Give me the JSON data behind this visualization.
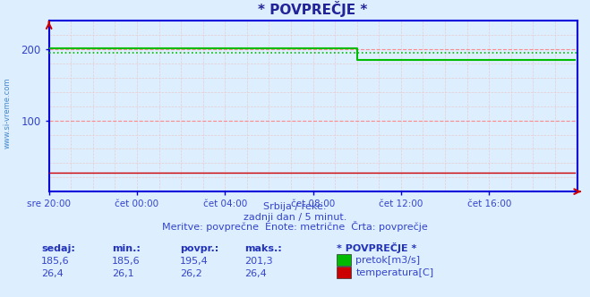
{
  "title": "* POVPREČJE *",
  "bg_color": "#ddeeff",
  "plot_bg_color": "#ddeeff",
  "grid_major_color": "#ff8888",
  "grid_minor_color": "#e8cccc",
  "axis_color": "#0000dd",
  "xlim": [
    0,
    288
  ],
  "ylim": [
    0,
    240
  ],
  "yticks": [
    100,
    200
  ],
  "xtick_labels": [
    "sre 20:00",
    "čet 00:00",
    "čet 04:00",
    "čet 08:00",
    "čet 12:00",
    "čet 16:00"
  ],
  "xtick_positions": [
    0,
    48,
    96,
    144,
    192,
    240
  ],
  "flow_color": "#00bb00",
  "flow_value_before": 201.3,
  "flow_value_after": 185.6,
  "flow_drop_index": 168,
  "flow_avg": 195.4,
  "temp_color": "#cc0000",
  "temp_value": 26.4,
  "watermark": "www.si-vreme.com",
  "subtitle1": "Srbija / reke.",
  "subtitle2": "zadnji dan / 5 minut.",
  "subtitle3": "Meritve: povprečne  Enote: metrične  Črta: povprečje",
  "legend_title": "* POVPREČJE *",
  "legend_items": [
    {
      "label": "pretok[m3/s]",
      "color": "#00bb00"
    },
    {
      "label": "temperatura[C]",
      "color": "#cc0000"
    }
  ],
  "table_headers": [
    "sedaj:",
    "min.:",
    "povpr.:",
    "maks.:"
  ],
  "table_row1": [
    "185,6",
    "185,6",
    "195,4",
    "201,3"
  ],
  "table_row2": [
    "26,4",
    "26,1",
    "26,2",
    "26,4"
  ],
  "text_color": "#3344cc",
  "header_color": "#2233bb",
  "title_color": "#222299"
}
